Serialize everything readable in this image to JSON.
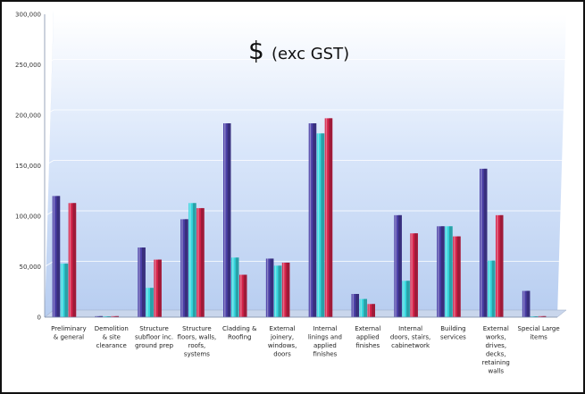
{
  "chart_data": {
    "type": "bar",
    "title_symbol": "$",
    "title_text": "(exc GST)",
    "ylim": [
      0,
      300000
    ],
    "yticks": [
      "0",
      "50,000",
      "100,000",
      "150,000",
      "200,000",
      "250,000",
      "300,000"
    ],
    "grid": true,
    "categories": [
      [
        "Preliminary",
        "& general"
      ],
      [
        "Demolition",
        "& site",
        "clearance"
      ],
      [
        "Structure",
        "subfloor inc.",
        "ground prep"
      ],
      [
        "Structure",
        "floors, walls,",
        "roofs,",
        "systems"
      ],
      [
        "Cladding &",
        "Roofing"
      ],
      [
        "External",
        "joinery,",
        "windows,",
        "doors"
      ],
      [
        "Internal",
        "linings and",
        "applied",
        "finishes"
      ],
      [
        "External",
        "applied",
        "finishes"
      ],
      [
        "Internal",
        "doors, stairs,",
        "cabinetwork"
      ],
      [
        "Building",
        "services"
      ],
      [
        "External",
        "works,",
        "drives,",
        "decks,",
        "retaining",
        "walls"
      ],
      [
        "Special Large",
        "items"
      ]
    ],
    "series": [
      {
        "color": "#4b3fa6",
        "values": [
          120000,
          1000,
          69000,
          97000,
          192000,
          58000,
          192000,
          23000,
          101000,
          90000,
          147000,
          26000
        ]
      },
      {
        "color": "#36d6de",
        "values": [
          53000,
          0,
          29000,
          113000,
          59000,
          51000,
          182000,
          18000,
          36000,
          90000,
          56000,
          0
        ]
      },
      {
        "color": "#d4234a",
        "values": [
          113000,
          1000,
          57000,
          108000,
          42000,
          54000,
          197000,
          13000,
          83000,
          80000,
          101000,
          1000
        ]
      }
    ]
  }
}
